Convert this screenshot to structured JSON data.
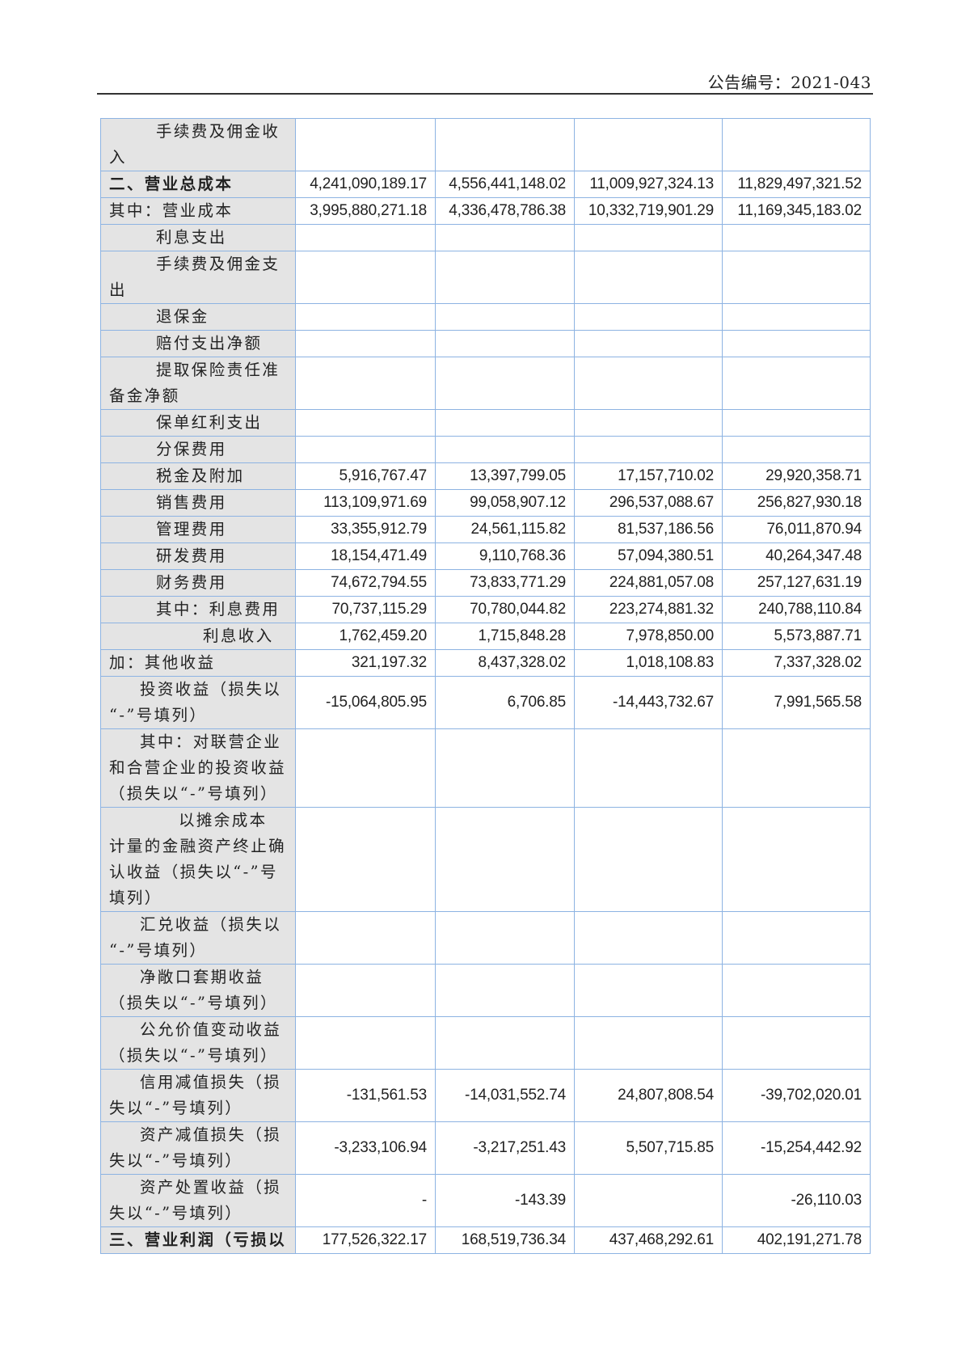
{
  "header": {
    "announcement_no": "公告编号：2021-043"
  },
  "table": {
    "rows": [
      {
        "label": [
          "手续费及佣金收",
          "入"
        ],
        "values": [
          "",
          "",
          "",
          ""
        ]
      },
      {
        "label": [
          "二、营业总成本"
        ],
        "bold": true,
        "values": [
          "4,241,090,189.17",
          "4,556,441,148.02",
          "11,009,927,324.13",
          "11,829,497,321.52"
        ]
      },
      {
        "label": [
          "其中：营业成本"
        ],
        "values": [
          "3,995,880,271.18",
          "4,336,478,786.38",
          "10,332,719,901.29",
          "11,169,345,183.02"
        ]
      },
      {
        "label": [
          "利息支出"
        ],
        "values": [
          "",
          "",
          "",
          ""
        ]
      },
      {
        "label": [
          "手续费及佣金支",
          "出"
        ],
        "values": [
          "",
          "",
          "",
          ""
        ]
      },
      {
        "label": [
          "退保金"
        ],
        "values": [
          "",
          "",
          "",
          ""
        ]
      },
      {
        "label": [
          "赔付支出净额"
        ],
        "values": [
          "",
          "",
          "",
          ""
        ]
      },
      {
        "label": [
          "提取保险责任准",
          "备金净额"
        ],
        "values": [
          "",
          "",
          "",
          ""
        ]
      },
      {
        "label": [
          "保单红利支出"
        ],
        "values": [
          "",
          "",
          "",
          ""
        ]
      },
      {
        "label": [
          "分保费用"
        ],
        "values": [
          "",
          "",
          "",
          ""
        ]
      },
      {
        "label": [
          "税金及附加"
        ],
        "values": [
          "5,916,767.47",
          "13,397,799.05",
          "17,157,710.02",
          "29,920,358.71"
        ]
      },
      {
        "label": [
          "销售费用"
        ],
        "values": [
          "113,109,971.69",
          "99,058,907.12",
          "296,537,088.67",
          "256,827,930.18"
        ]
      },
      {
        "label": [
          "管理费用"
        ],
        "values": [
          "33,355,912.79",
          "24,561,115.82",
          "81,537,186.56",
          "76,011,870.94"
        ]
      },
      {
        "label": [
          "研发费用"
        ],
        "values": [
          "18,154,471.49",
          "9,110,768.36",
          "57,094,380.51",
          "40,264,347.48"
        ]
      },
      {
        "label": [
          "财务费用"
        ],
        "values": [
          "74,672,794.55",
          "73,833,771.29",
          "224,881,057.08",
          "257,127,631.19"
        ]
      },
      {
        "label": [
          "其中：利息费用"
        ],
        "values": [
          "70,737,115.29",
          "70,780,044.82",
          "223,274,881.32",
          "240,788,110.84"
        ]
      },
      {
        "label": [
          "利息收入"
        ],
        "values": [
          "1,762,459.20",
          "1,715,848.28",
          "7,978,850.00",
          "5,573,887.71"
        ]
      },
      {
        "label": [
          "加：其他收益"
        ],
        "values": [
          "321,197.32",
          "8,437,328.02",
          "1,018,108.83",
          "7,337,328.02"
        ]
      },
      {
        "label": [
          "投资收益（损失以",
          "“-”号填列）"
        ],
        "values": [
          "-15,064,805.95",
          "6,706.85",
          "-14,443,732.67",
          "7,991,565.58"
        ]
      },
      {
        "label": [
          "其中：对联营企业",
          "和合营企业的投资收益",
          "（损失以“-”号填列）"
        ],
        "values": [
          "",
          "",
          "",
          ""
        ]
      },
      {
        "label": [
          "以摊余成本",
          "计量的金融资产终止确",
          "认收益（损失以“-”号",
          "填列）"
        ],
        "values": [
          "",
          "",
          "",
          ""
        ]
      },
      {
        "label": [
          "汇兑收益（损失以",
          "“-”号填列）"
        ],
        "values": [
          "",
          "",
          "",
          ""
        ]
      },
      {
        "label": [
          "净敞口套期收益",
          "（损失以“-”号填列）"
        ],
        "values": [
          "",
          "",
          "",
          ""
        ]
      },
      {
        "label": [
          "公允价值变动收益",
          "（损失以“-”号填列）"
        ],
        "values": [
          "",
          "",
          "",
          ""
        ]
      },
      {
        "label": [
          "信用减值损失（损",
          "失以“-”号填列）"
        ],
        "values": [
          "-131,561.53",
          "-14,031,552.74",
          "24,807,808.54",
          "-39,702,020.01"
        ]
      },
      {
        "label": [
          "资产减值损失（损",
          "失以“-”号填列）"
        ],
        "values": [
          "-3,233,106.94",
          "-3,217,251.43",
          "5,507,715.85",
          "-15,254,442.92"
        ]
      },
      {
        "label": [
          "资产处置收益（损",
          "失以“-”号填列）"
        ],
        "values": [
          "-",
          "-143.39",
          "",
          "-26,110.03"
        ]
      },
      {
        "label": [
          "三、营业利润（亏损以"
        ],
        "bold": true,
        "values": [
          "177,526,322.17",
          "168,519,736.34",
          "437,468,292.61",
          "402,191,271.78"
        ]
      }
    ]
  }
}
